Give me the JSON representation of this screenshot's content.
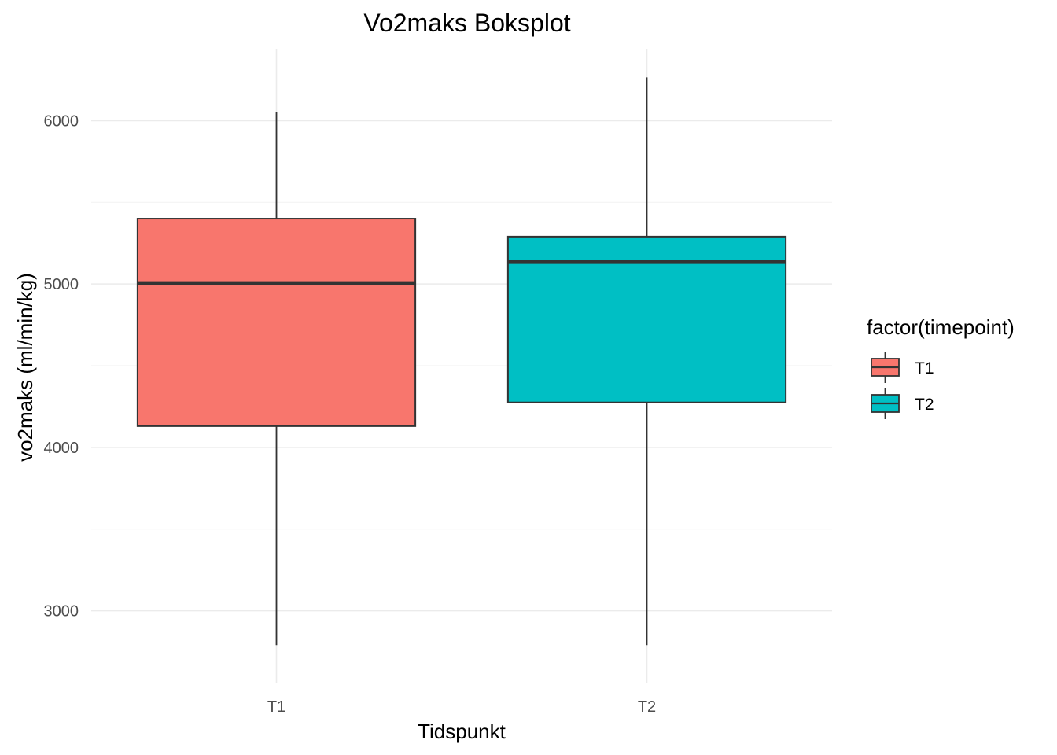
{
  "chart_data": {
    "type": "boxplot",
    "title": "Vo2maks Boksplot",
    "xlabel": "Tidspunkt",
    "ylabel": "vo2maks (ml/min/kg)",
    "categories": [
      "T1",
      "T2"
    ],
    "series": [
      {
        "name": "T1",
        "color": "#F8766D",
        "min": 2790,
        "q1": 4130,
        "median": 5005,
        "q3": 5400,
        "max": 6055
      },
      {
        "name": "T2",
        "color": "#00BFC4",
        "min": 2790,
        "q1": 4275,
        "median": 5135,
        "q3": 5290,
        "max": 6265
      }
    ],
    "yticks": [
      3000,
      4000,
      5000,
      6000
    ],
    "ylim": [
      2560,
      6440
    ],
    "grid": true,
    "legend": {
      "title": "factor(timepoint)",
      "position": "right",
      "items": [
        "T1",
        "T2"
      ]
    }
  }
}
